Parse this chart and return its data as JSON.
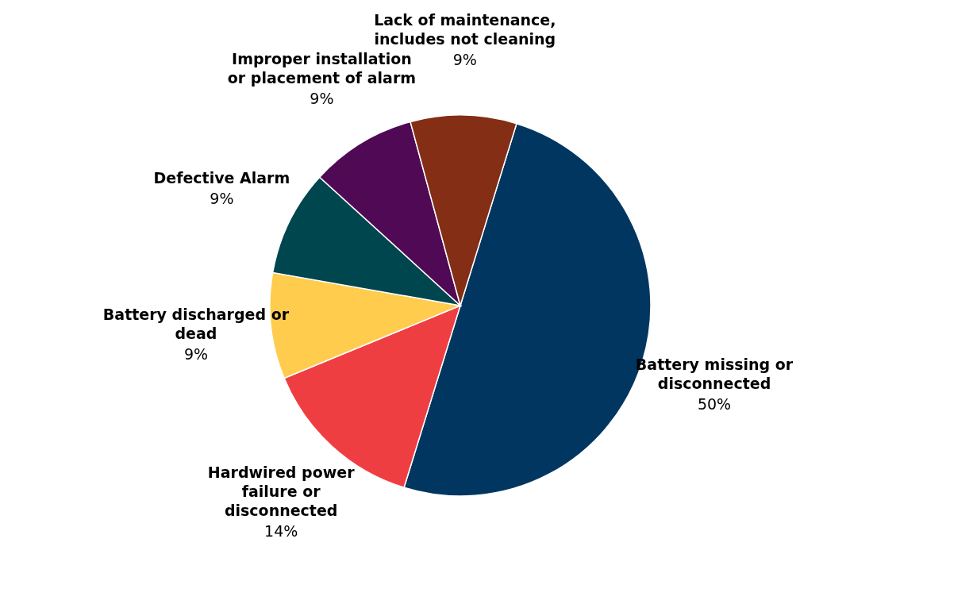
{
  "chart_data": {
    "type": "pie",
    "categories": [
      "Battery missing or disconnected",
      "Hardwired power failure or disconnected",
      "Battery discharged or dead",
      "Defective Alarm",
      "Improper installation or placement of alarm",
      "Lack of maintenance, includes not cleaning"
    ],
    "values": [
      50,
      14,
      9,
      9,
      9,
      9
    ],
    "value_labels": [
      "50%",
      "14%",
      "9%",
      "9%",
      "9%",
      "9%"
    ],
    "colors": [
      "#003660",
      "#ef3e42",
      "#ffcc4e",
      "#00464f",
      "#500a55",
      "#832e15"
    ],
    "legend": false
  }
}
